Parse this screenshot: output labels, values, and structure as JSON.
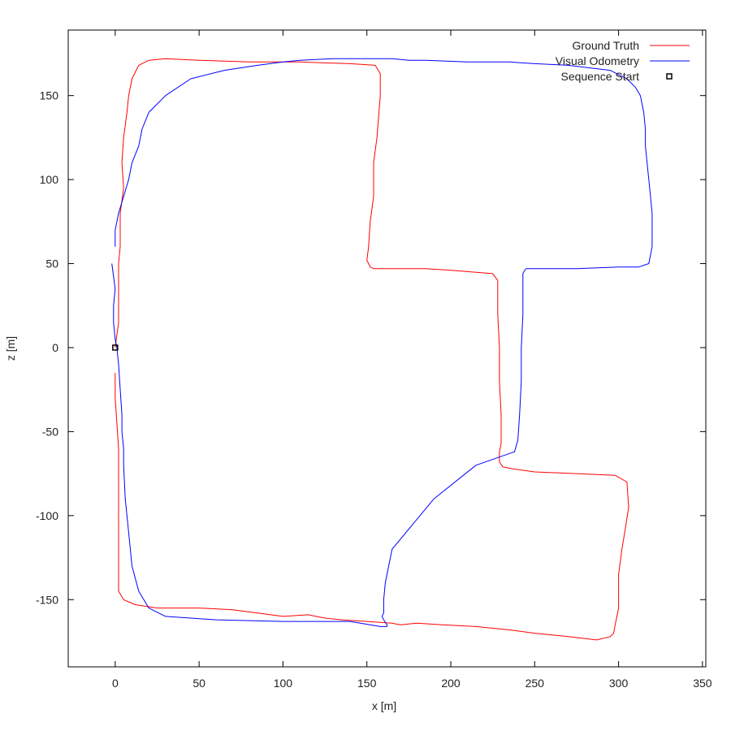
{
  "chart_data": {
    "type": "line",
    "xlabel": "x [m]",
    "ylabel": "z [m]",
    "xlim": [
      -28,
      352
    ],
    "ylim": [
      -190,
      189
    ],
    "x_ticks": [
      0,
      50,
      100,
      150,
      200,
      250,
      300,
      350
    ],
    "y_ticks": [
      -150,
      -100,
      -50,
      0,
      50,
      100,
      150
    ],
    "grid": false,
    "legend_position": "top-right",
    "series": [
      {
        "name": "Ground Truth",
        "color": "#ff0000",
        "x": [
          0,
          2,
          2,
          2,
          2,
          3,
          3,
          5,
          4,
          5,
          7,
          8,
          10,
          14,
          20,
          30,
          50,
          80,
          110,
          140,
          155,
          158,
          158,
          156,
          154,
          154,
          152,
          151,
          150,
          152,
          154,
          160,
          185,
          200,
          225,
          228,
          228,
          229,
          229,
          230,
          230,
          230,
          229,
          229,
          231,
          236,
          250,
          275,
          298,
          305,
          306,
          304,
          302,
          300,
          300,
          298,
          297,
          295,
          287,
          270,
          250,
          235,
          215,
          195,
          180,
          170,
          165,
          150,
          135,
          125,
          115,
          100,
          85,
          70,
          50,
          25,
          12,
          5,
          2,
          2,
          2,
          2,
          2,
          1,
          0,
          0
        ],
        "y": [
          0,
          15,
          30,
          40,
          50,
          60,
          80,
          95,
          110,
          125,
          140,
          150,
          160,
          168,
          171,
          172,
          171,
          170,
          170,
          169,
          168,
          163,
          150,
          125,
          110,
          90,
          75,
          60,
          52,
          48,
          47,
          47,
          47,
          46,
          44,
          40,
          20,
          0,
          -20,
          -40,
          -50,
          -57,
          -62,
          -68,
          -71,
          -72,
          -74,
          -75,
          -76,
          -80,
          -95,
          -108,
          -120,
          -135,
          -155,
          -165,
          -170,
          -172,
          -174,
          -172,
          -170,
          -168,
          -166,
          -165,
          -164,
          -165,
          -164,
          -163,
          -162,
          -161,
          -159,
          -160,
          -158,
          -156,
          -155,
          -155,
          -153,
          -150,
          -145,
          -125,
          -100,
          -80,
          -60,
          -45,
          -30,
          -15
        ]
      },
      {
        "name": "Visual Odometry",
        "color": "#0000ff",
        "x": [
          -2,
          0,
          -1,
          -1,
          0,
          1,
          2,
          3,
          4,
          4,
          5,
          5,
          6,
          8,
          10,
          14,
          20,
          30,
          60,
          100,
          140,
          158,
          162,
          162,
          160,
          159,
          160,
          160,
          160,
          161,
          165,
          190,
          215,
          238,
          240,
          241,
          242,
          242,
          243,
          243,
          243,
          244,
          245,
          250,
          275,
          300,
          312,
          318,
          320,
          320,
          318,
          316,
          316,
          315,
          313,
          310,
          305,
          295,
          270,
          250,
          235,
          210,
          185,
          175,
          165,
          150,
          130,
          110,
          100,
          85,
          65,
          45,
          30,
          20,
          16,
          14,
          10,
          8,
          5,
          2,
          0,
          0
        ],
        "y": [
          50,
          35,
          25,
          15,
          5,
          0,
          -10,
          -25,
          -40,
          -50,
          -60,
          -70,
          -90,
          -110,
          -130,
          -145,
          -155,
          -160,
          -162,
          -163,
          -163,
          -166,
          -166,
          -165,
          -162,
          -160,
          -158,
          -155,
          -150,
          -140,
          -120,
          -90,
          -70,
          -62,
          -55,
          -40,
          -20,
          0,
          20,
          35,
          44,
          46,
          47,
          47,
          47,
          48,
          48,
          50,
          60,
          80,
          100,
          120,
          130,
          140,
          150,
          155,
          160,
          165,
          168,
          169,
          170,
          170,
          171,
          171,
          172,
          172,
          172,
          171,
          170,
          168,
          165,
          160,
          150,
          140,
          130,
          120,
          110,
          100,
          90,
          80,
          70,
          60
        ]
      },
      {
        "name": "Sequence Start",
        "color": "#000000",
        "marker": "square",
        "x": [
          0
        ],
        "y": [
          0
        ]
      }
    ]
  }
}
